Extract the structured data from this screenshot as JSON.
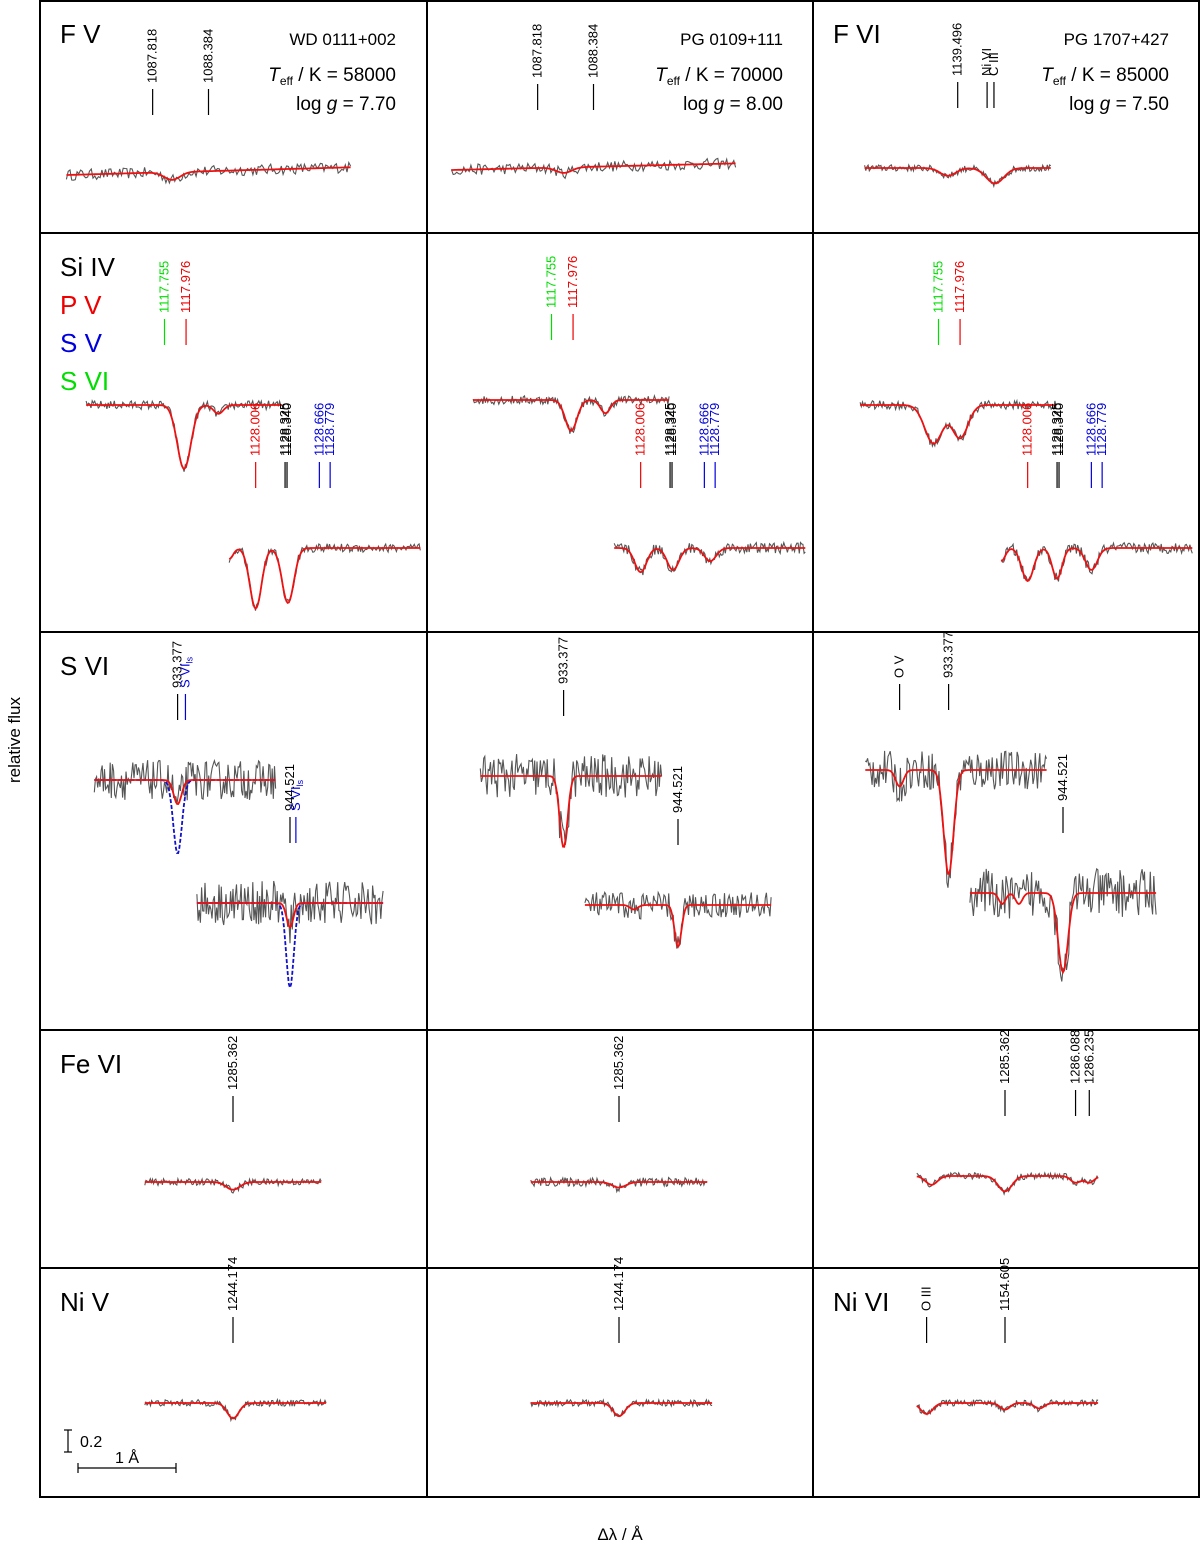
{
  "chart_data": {
    "type": "line",
    "xlabel": "Δλ / Å",
    "ylabel": "relative flux",
    "scale_bar": {
      "flux": "0.2",
      "wavelength": "1 Å"
    },
    "colors": {
      "observed": "#555555",
      "model": "#ee1111",
      "model_ls": "#1111cc",
      "si": "#000000",
      "p": "#ee0000",
      "s5": "#0000dd",
      "s6": "#00dd00"
    },
    "stars": [
      {
        "name": "WD 0111+002",
        "teff_label": "T",
        "teff_sub": "eff",
        "teff_unit": " / K",
        "teff_value": "= 58000",
        "logg_label": "log",
        "logg_g": "g",
        "logg_value": "= 7.70"
      },
      {
        "name": "PG 0109+111",
        "teff_label": "T",
        "teff_sub": "eff",
        "teff_unit": " / K",
        "teff_value": "= 70000",
        "logg_label": "log",
        "logg_g": "g",
        "logg_value": "= 8.00"
      },
      {
        "name": "PG 1707+427",
        "teff_label": "T",
        "teff_sub": "eff",
        "teff_unit": " / K",
        "teff_value": "= 85000",
        "logg_label": "log",
        "logg_g": "g",
        "logg_value": "= 7.50"
      }
    ],
    "rows": [
      {
        "labels": [
          "F V",
          "",
          "F VI"
        ]
      },
      {
        "labels": [
          "Si IV",
          "",
          ""
        ],
        "legend": [
          {
            "text": "Si IV",
            "color": "#000000"
          },
          {
            "text": "P V",
            "color": "#ee0000"
          },
          {
            "text": "S V",
            "color": "#0000dd"
          },
          {
            "text": "S VI",
            "color": "#00dd00"
          }
        ]
      },
      {
        "labels": [
          "S VI",
          "",
          ""
        ]
      },
      {
        "labels": [
          "Fe VI",
          "",
          ""
        ]
      },
      {
        "labels": [
          "Ni V",
          "",
          "Ni VI"
        ]
      }
    ],
    "panels": [
      {
        "row": 0,
        "col": 0,
        "ids": [
          {
            "text": "1087.818",
            "dx": -0.82,
            "depth": 0.0
          },
          {
            "text": "1088.384",
            "dx": -0.25,
            "depth": 0.0
          }
        ],
        "lines": [
          {
            "dx": -0.62,
            "depth": 0.07,
            "width": 0.08
          }
        ],
        "tilt": 0.07,
        "noise": 0.05,
        "span": [
          -1.7,
          1.2
        ]
      },
      {
        "row": 0,
        "col": 1,
        "ids": [
          {
            "text": "1087.818",
            "dx": -0.82,
            "depth": 0.0
          },
          {
            "text": "1088.384",
            "dx": -0.25,
            "depth": 0.0
          }
        ],
        "lines": [
          {
            "dx": -0.55,
            "depth": 0.05,
            "width": 0.08
          }
        ],
        "tilt": 0.06,
        "noise": 0.05,
        "span": [
          -1.7,
          1.2
        ]
      },
      {
        "row": 0,
        "col": 2,
        "ids": [
          {
            "text": "1139.496",
            "dx": -0.35,
            "depth": 0.0
          },
          {
            "text": "Ni VI",
            "dx": -0.05,
            "depth": 0.0
          },
          {
            "text": "C III",
            "dx": 0.02,
            "depth": 0.0
          }
        ],
        "lines": [
          {
            "dx": -0.45,
            "depth": 0.07,
            "width": 0.08
          },
          {
            "dx": 0.03,
            "depth": 0.14,
            "width": 0.09
          }
        ],
        "tilt": 0.0,
        "noise": 0.03,
        "span": [
          -1.3,
          0.6
        ]
      },
      {
        "row": 1,
        "col": 0,
        "ids": [
          {
            "text": "1117.755",
            "dx": -0.75,
            "color": "#00dd00"
          },
          {
            "text": "1117.976",
            "dx": -0.53,
            "color": "#ee0000"
          }
        ],
        "lines": [
          {
            "dx": -0.55,
            "depth": 0.58,
            "width": 0.07
          },
          {
            "dx": -0.2,
            "depth": 0.08,
            "width": 0.05
          }
        ],
        "tilt": 0.0,
        "noise": 0.04,
        "span": [
          -1.55,
          0.45
        ]
      },
      {
        "row": 1,
        "col": 1,
        "ids": [
          {
            "text": "1117.755",
            "dx": -0.75,
            "color": "#00dd00"
          },
          {
            "text": "1117.976",
            "dx": -0.53,
            "color": "#ee0000"
          }
        ],
        "lines": [
          {
            "dx": -0.55,
            "depth": 0.28,
            "width": 0.06
          },
          {
            "dx": -0.2,
            "depth": 0.12,
            "width": 0.05
          }
        ],
        "tilt": 0.0,
        "noise": 0.04,
        "span": [
          -1.55,
          0.45
        ]
      },
      {
        "row": 1,
        "col": 2,
        "ids": [
          {
            "text": "1117.755",
            "dx": -0.75,
            "color": "#00dd00"
          },
          {
            "text": "1117.976",
            "dx": -0.53,
            "color": "#ee0000"
          }
        ],
        "lines": [
          {
            "dx": -0.8,
            "depth": 0.35,
            "width": 0.09
          },
          {
            "dx": -0.53,
            "depth": 0.3,
            "width": 0.08
          }
        ],
        "tilt": 0.0,
        "noise": 0.04,
        "span": [
          -1.55,
          0.45
        ]
      },
      {
        "row": 2,
        "col": 0,
        "ids": [
          {
            "text": "933.377",
            "dx": -0.3
          },
          {
            "text": "S VI",
            "sub": "ls",
            "dx": -0.22,
            "color": "#0000dd"
          }
        ],
        "lines": [
          {
            "dx": -0.3,
            "depth": 0.22,
            "width": 0.04
          }
        ],
        "ls_depth": 0.45,
        "tilt": 0.0,
        "noise": 0.18,
        "span": [
          -1.15,
          0.7
        ]
      },
      {
        "row": 2,
        "col": 1,
        "ids": [
          {
            "text": "933.377",
            "dx": -0.3
          }
        ],
        "lines": [
          {
            "dx": -0.3,
            "depth": 0.65,
            "width": 0.04
          }
        ],
        "tilt": 0.0,
        "noise": 0.2,
        "span": [
          -1.15,
          0.7
        ]
      },
      {
        "row": 2,
        "col": 2,
        "ids": [
          {
            "text": "O V",
            "dx": -0.8
          },
          {
            "text": "933.377",
            "dx": -0.3
          }
        ],
        "lines": [
          {
            "dx": -0.8,
            "depth": 0.15,
            "width": 0.04
          },
          {
            "dx": -0.3,
            "depth": 0.95,
            "width": 0.05
          }
        ],
        "tilt": 0.0,
        "noise": 0.18,
        "span": [
          -1.15,
          0.7
        ]
      },
      {
        "row": 3,
        "col": 0,
        "ids": [
          {
            "text": "1285.362",
            "dx": 0.0
          }
        ],
        "lines": [
          {
            "dx": 0.0,
            "depth": 0.07,
            "width": 0.07
          }
        ],
        "tilt": 0.0,
        "noise": 0.03,
        "span": [
          -0.9,
          0.9
        ]
      },
      {
        "row": 3,
        "col": 1,
        "ids": [
          {
            "text": "1285.362",
            "dx": 0.0
          }
        ],
        "lines": [
          {
            "dx": 0.0,
            "depth": 0.05,
            "width": 0.07
          }
        ],
        "tilt": 0.0,
        "noise": 0.04,
        "span": [
          -0.9,
          0.9
        ]
      },
      {
        "row": 3,
        "col": 2,
        "ids": [
          {
            "text": "1285.362",
            "dx": 0.0
          },
          {
            "text": "1286.088",
            "dx": 0.72
          },
          {
            "text": "1286.235",
            "dx": 0.86
          }
        ],
        "lines": [
          {
            "dx": 0.0,
            "depth": 0.14,
            "width": 0.07
          },
          {
            "dx": 0.72,
            "depth": 0.06,
            "width": 0.05
          },
          {
            "dx": 0.86,
            "depth": 0.06,
            "width": 0.05
          },
          {
            "dx": -0.75,
            "depth": 0.08,
            "width": 0.06
          }
        ],
        "tilt": 0.0,
        "noise": 0.03,
        "span": [
          -0.9,
          0.95
        ]
      },
      {
        "row": 4,
        "col": 0,
        "ids": [
          {
            "text": "1244.174",
            "dx": 0.0
          }
        ],
        "lines": [
          {
            "dx": 0.0,
            "depth": 0.14,
            "width": 0.06
          }
        ],
        "tilt": 0.0,
        "noise": 0.03,
        "span": [
          -0.9,
          0.95
        ]
      },
      {
        "row": 4,
        "col": 1,
        "ids": [
          {
            "text": "1244.174",
            "dx": 0.0
          }
        ],
        "lines": [
          {
            "dx": 0.0,
            "depth": 0.12,
            "width": 0.06
          }
        ],
        "tilt": 0.0,
        "noise": 0.03,
        "span": [
          -0.9,
          0.95
        ]
      },
      {
        "row": 4,
        "col": 2,
        "ids": [
          {
            "text": "O III",
            "dx": -0.8
          },
          {
            "text": "1154.605",
            "dx": 0.0
          }
        ],
        "lines": [
          {
            "dx": -0.8,
            "depth": 0.1,
            "width": 0.06
          },
          {
            "dx": 0.0,
            "depth": 0.06,
            "width": 0.05
          },
          {
            "dx": 0.35,
            "depth": 0.05,
            "width": 0.05
          }
        ],
        "tilt": 0.0,
        "noise": 0.03,
        "span": [
          -0.9,
          0.95
        ]
      }
    ],
    "second_segments": [
      {
        "row": 1,
        "col": 0,
        "ids": [
          {
            "text": "1128.006",
            "color": "#ee0000",
            "dx": -0.33
          },
          {
            "text": "1128.325",
            "color": "#000000",
            "dx": -0.03
          },
          {
            "text": "1128.340",
            "color": "#000000",
            "dx": -0.01
          },
          {
            "text": "1128.666",
            "color": "#0000dd",
            "dx": 0.32
          },
          {
            "text": "1128.779",
            "color": "#0000dd",
            "dx": 0.43
          }
        ],
        "lines": [
          {
            "dx": -0.33,
            "depth": 0.55,
            "width": 0.06
          },
          {
            "dx": 0.0,
            "depth": 0.5,
            "width": 0.06
          },
          {
            "dx": -0.6,
            "depth": 0.1,
            "width": 0.04
          }
        ],
        "tilt": 0.0,
        "noise": 0.04,
        "span": [
          -0.6,
          1.35
        ]
      },
      {
        "row": 1,
        "col": 1,
        "ids": [
          {
            "text": "1128.006",
            "color": "#ee0000",
            "dx": -0.33
          },
          {
            "text": "1128.325",
            "color": "#000000",
            "dx": -0.03
          },
          {
            "text": "1128.340",
            "color": "#000000",
            "dx": -0.01
          },
          {
            "text": "1128.666",
            "color": "#0000dd",
            "dx": 0.32
          },
          {
            "text": "1128.779",
            "color": "#0000dd",
            "dx": 0.43
          }
        ],
        "lines": [
          {
            "dx": -0.33,
            "depth": 0.22,
            "width": 0.06
          },
          {
            "dx": 0.0,
            "depth": 0.2,
            "width": 0.06
          },
          {
            "dx": 0.38,
            "depth": 0.12,
            "width": 0.06
          }
        ],
        "tilt": 0.0,
        "noise": 0.05,
        "span": [
          -0.6,
          1.35
        ]
      },
      {
        "row": 1,
        "col": 2,
        "ids": [
          {
            "text": "1128.006",
            "color": "#ee0000",
            "dx": -0.33
          },
          {
            "text": "1128.325",
            "color": "#000000",
            "dx": -0.03
          },
          {
            "text": "1128.340",
            "color": "#000000",
            "dx": -0.01
          },
          {
            "text": "1128.666",
            "color": "#0000dd",
            "dx": 0.32
          },
          {
            "text": "1128.779",
            "color": "#0000dd",
            "dx": 0.43
          }
        ],
        "lines": [
          {
            "dx": -0.33,
            "depth": 0.3,
            "width": 0.06
          },
          {
            "dx": -0.03,
            "depth": 0.28,
            "width": 0.05
          },
          {
            "dx": 0.32,
            "depth": 0.2,
            "width": 0.06
          },
          {
            "dx": -0.6,
            "depth": 0.12,
            "width": 0.04
          }
        ],
        "tilt": 0.0,
        "noise": 0.05,
        "span": [
          -0.6,
          1.35
        ]
      },
      {
        "row": 2,
        "col": 0,
        "ids": [
          {
            "text": "944.521",
            "dx": 0.0
          },
          {
            "text": "S VI",
            "sub": "ls",
            "dx": 0.06,
            "color": "#0000dd"
          }
        ],
        "lines": [
          {
            "dx": 0.0,
            "depth": 0.22,
            "width": 0.035
          }
        ],
        "ls_depth": 0.55,
        "tilt": 0.0,
        "noise": 0.2,
        "span": [
          -0.95,
          0.95
        ]
      },
      {
        "row": 2,
        "col": 1,
        "ids": [
          {
            "text": "944.521",
            "dx": 0.0
          }
        ],
        "lines": [
          {
            "dx": 0.0,
            "depth": 0.38,
            "width": 0.035
          },
          {
            "dx": -0.45,
            "depth": 0.04,
            "width": 0.04
          }
        ],
        "tilt": 0.0,
        "noise": 0.12,
        "span": [
          -0.95,
          0.95
        ]
      },
      {
        "row": 2,
        "col": 2,
        "ids": [
          {
            "text": "944.521",
            "dx": 0.0
          }
        ],
        "lines": [
          {
            "dx": 0.0,
            "depth": 0.72,
            "width": 0.05
          },
          {
            "dx": -0.62,
            "depth": 0.1,
            "width": 0.035
          },
          {
            "dx": -0.45,
            "depth": 0.1,
            "width": 0.035
          }
        ],
        "tilt": 0.0,
        "noise": 0.22,
        "span": [
          -0.95,
          0.95
        ]
      }
    ]
  }
}
